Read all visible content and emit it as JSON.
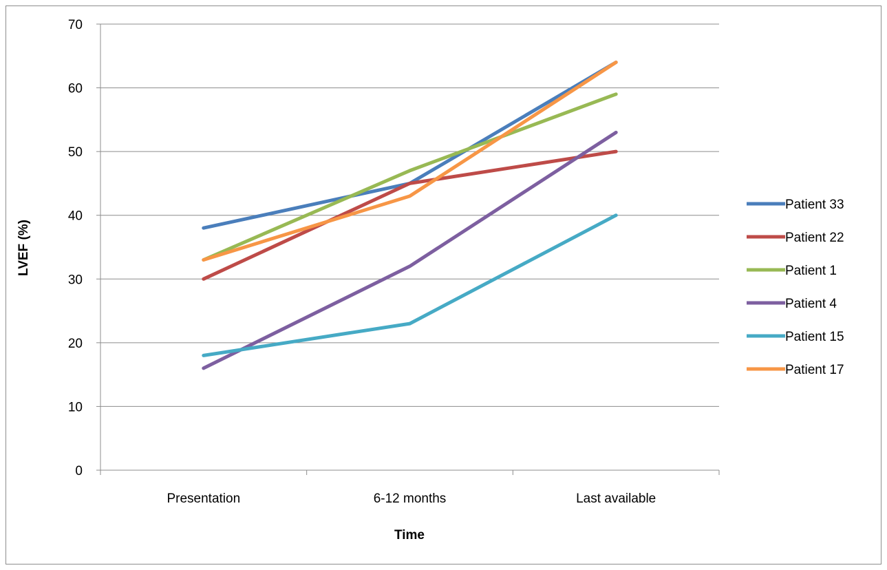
{
  "chart_data": {
    "type": "line",
    "title": "",
    "xlabel": "Time",
    "ylabel": "LVEF (%)",
    "categories": [
      "Presentation",
      "6-12 months",
      "Last available"
    ],
    "ylim": [
      0,
      70
    ],
    "yticks": [
      0,
      10,
      20,
      30,
      40,
      50,
      60,
      70
    ],
    "grid": true,
    "legend": "right",
    "series": [
      {
        "name": "Patient 33",
        "color": "#4a7ebb",
        "values": [
          38,
          45,
          64
        ]
      },
      {
        "name": "Patient 22",
        "color": "#be4b48",
        "values": [
          30,
          45,
          50
        ]
      },
      {
        "name": "Patient 1",
        "color": "#98b954",
        "values": [
          33,
          47,
          59
        ]
      },
      {
        "name": "Patient 4",
        "color": "#7d5fa0",
        "values": [
          16,
          32,
          53
        ]
      },
      {
        "name": "Patient 15",
        "color": "#46aac5",
        "values": [
          18,
          23,
          40
        ]
      },
      {
        "name": "Patient 17",
        "color": "#f79646",
        "values": [
          33,
          43,
          64
        ]
      }
    ]
  }
}
